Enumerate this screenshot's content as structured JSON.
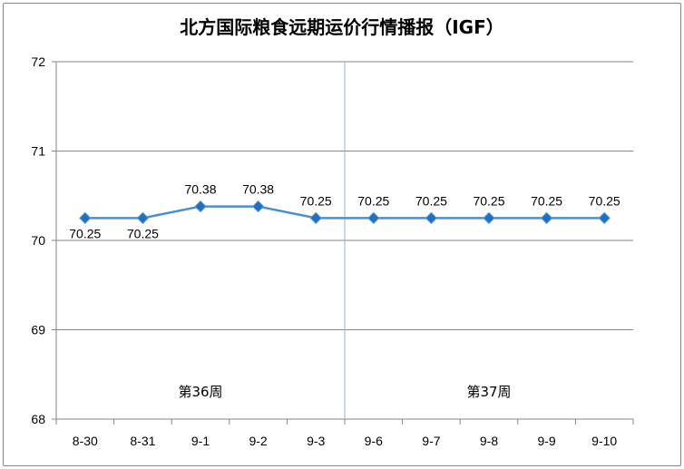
{
  "chart_data": {
    "type": "line",
    "title": "北方国际粮食远期运价行情播报（IGF）",
    "categories": [
      "8-30",
      "8-31",
      "9-1",
      "9-2",
      "9-3",
      "9-6",
      "9-7",
      "9-8",
      "9-9",
      "9-10"
    ],
    "values": [
      70.25,
      70.25,
      70.38,
      70.38,
      70.25,
      70.25,
      70.25,
      70.25,
      70.25,
      70.25
    ],
    "data_labels": [
      "70.25",
      "70.25",
      "70.38",
      "70.38",
      "70.25",
      "70.25",
      "70.25",
      "70.25",
      "70.25",
      "70.25"
    ],
    "label_position": [
      "below",
      "below",
      "above",
      "above",
      "above",
      "above",
      "above",
      "above",
      "above",
      "above"
    ],
    "ylim": [
      68,
      72
    ],
    "yticks": [
      68,
      69,
      70,
      71,
      72
    ],
    "grid": true,
    "series_color": "#4a8fd0",
    "marker_color": "#1f6fc4",
    "week_divider_after": "9-3",
    "week_labels": [
      "第36周",
      "第37周"
    ]
  }
}
